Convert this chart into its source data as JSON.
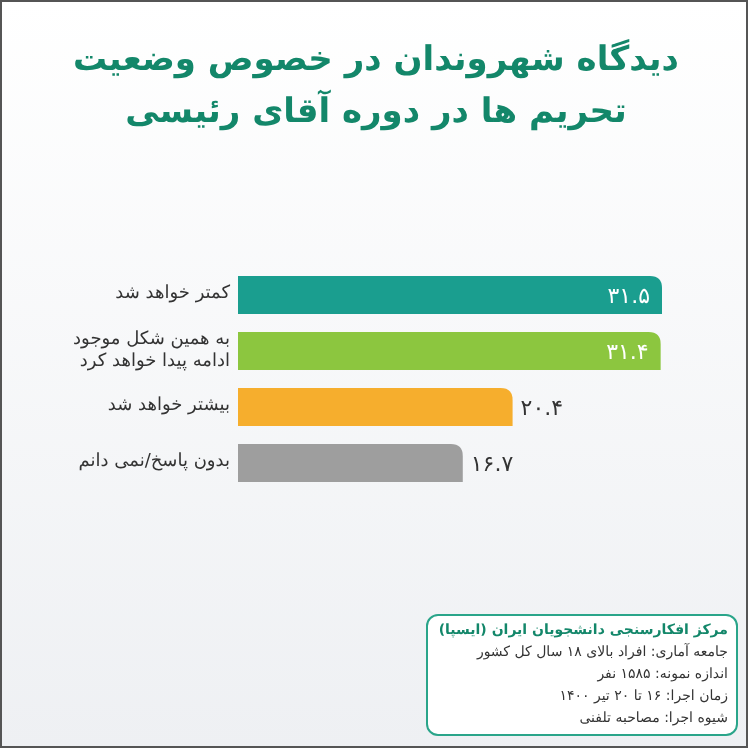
{
  "chart_data": {
    "type": "bar",
    "orientation": "horizontal",
    "title": "دیدگاه شهروندان در خصوص وضعیت تحریم ها در دوره آقای رئیسی",
    "categories": [
      "کمتر خواهد شد",
      "به همین شکل موجود ادامه پیدا خواهد کرد",
      "بیشتر خواهد شد",
      "بدون پاسخ/نمی دانم"
    ],
    "values": [
      31.5,
      31.4,
      20.4,
      16.7
    ],
    "value_labels": [
      "۳۱.۵",
      "۳۱.۴",
      "۲۰.۴",
      "۱۶.۷"
    ],
    "colors": [
      "#1a9e8f",
      "#8cc63f",
      "#f6ae2d",
      "#9e9e9e"
    ],
    "annotations": [
      "مرکز افکارسنجی دانشجویان ایران (ایسپا)",
      "جامعه آماری: افراد بالای ۱۸ سال کل کشور",
      "اندازه نمونه: ۱۵۸۵ نفر",
      "زمان اجرا: ۱۶ تا ۲۰ تیر ۱۴۰۰",
      "شیوه اجرا: مصاحبه تلفنی"
    ]
  }
}
